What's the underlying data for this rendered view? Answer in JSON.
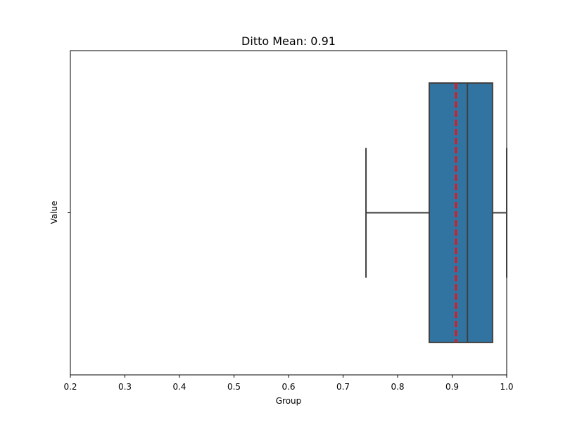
{
  "chart_data": {
    "type": "boxplot",
    "title": "Ditto Mean: 0.91",
    "xlabel": "Group",
    "ylabel": "Value",
    "orientation": "horizontal",
    "xlim": [
      0.2,
      1.0
    ],
    "x_ticks": [
      0.2,
      0.3,
      0.4,
      0.5,
      0.6,
      0.7,
      0.8,
      0.9,
      1.0
    ],
    "x_tick_labels": [
      "0.2",
      "0.3",
      "0.4",
      "0.5",
      "0.6",
      "0.7",
      "0.8",
      "0.9",
      "1.0"
    ],
    "y_tick_labels": [
      ""
    ],
    "grid": false,
    "box": {
      "whisker_low": 0.742,
      "q1": 0.858,
      "median": 0.928,
      "q3": 0.974,
      "whisker_high": 1.0
    },
    "mean_line": {
      "value": 0.907,
      "style": "dashed"
    },
    "colors": {
      "box_fill": "#3274a1",
      "box_edge": "#3f3f3f",
      "mean_line": "#e3161c",
      "axes": "#000000"
    }
  }
}
